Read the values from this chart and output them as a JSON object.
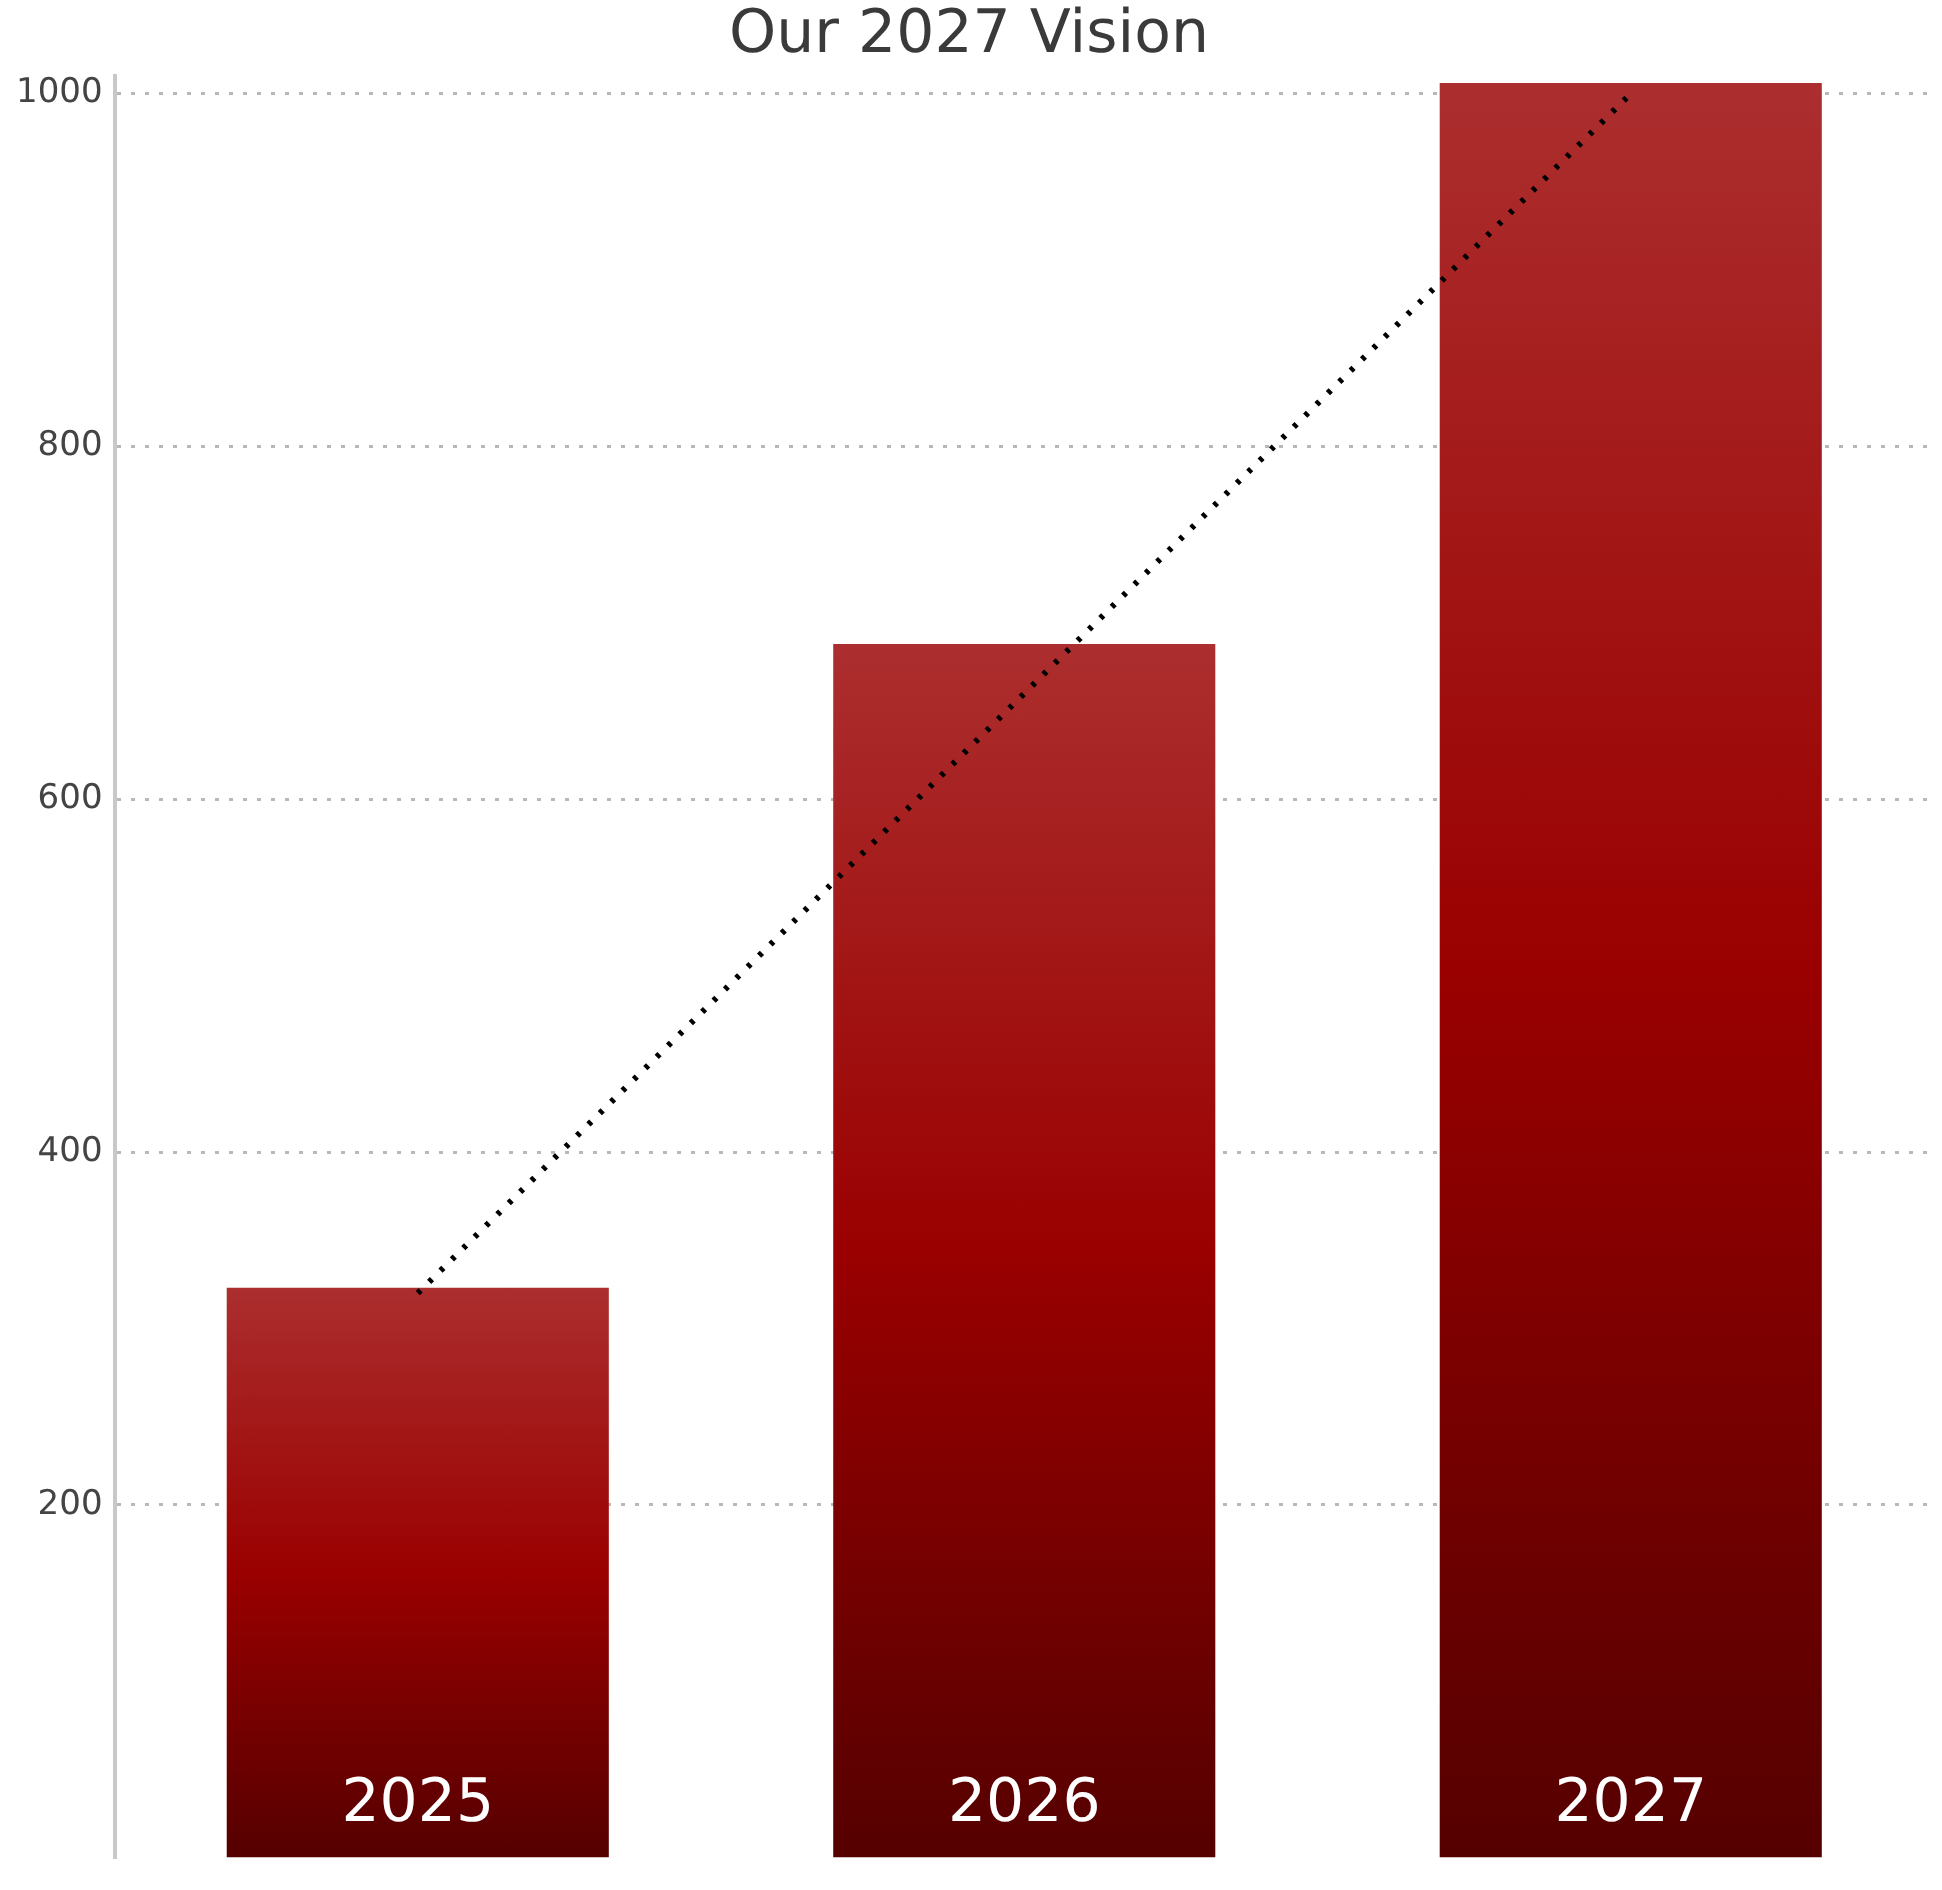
{
  "chart_data": {
    "type": "bar",
    "title": "Our 2027 Vision",
    "categories": [
      "2025",
      "2026",
      "2027"
    ],
    "series": [
      {
        "color": "#9a0000",
        "values": [
          323,
          688,
          1006
        ]
      },
      {
        "type": "line",
        "color": "#000000",
        "line_style": "dotted",
        "marker": "none",
        "values": [
          320,
          660,
          1000
        ]
      }
    ],
    "ylim": [
      0,
      1010
    ],
    "yticks": [
      200,
      400,
      600,
      800,
      1000
    ],
    "grid": "y",
    "legend": false
  }
}
